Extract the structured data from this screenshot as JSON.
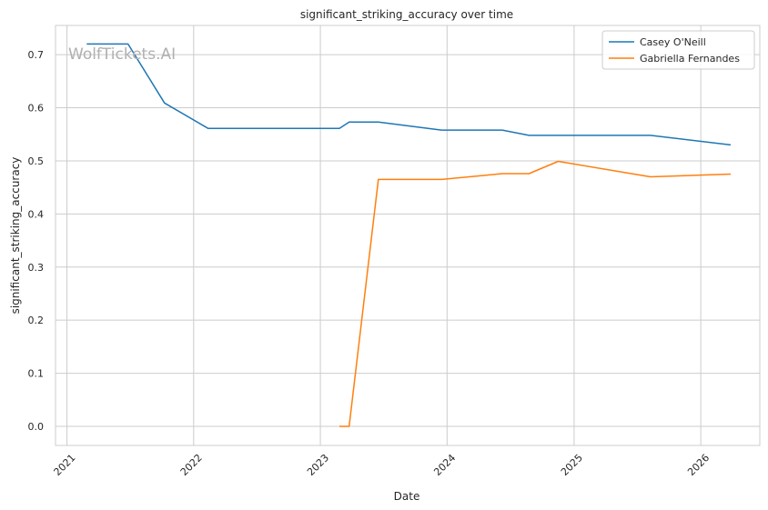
{
  "chart_data": {
    "type": "line",
    "title": "significant_striking_accuracy over time",
    "xlabel": "Date",
    "ylabel": "significant_striking_accuracy",
    "watermark": "WolfTickets.AI",
    "xlim": [
      "2020-11-29",
      "2026-06-20"
    ],
    "ylim": [
      -0.036,
      0.755
    ],
    "x_ticks": [
      "2021",
      "2022",
      "2023",
      "2024",
      "2025",
      "2026"
    ],
    "y_ticks": [
      "0.0",
      "0.1",
      "0.2",
      "0.3",
      "0.4",
      "0.5",
      "0.6",
      "0.7"
    ],
    "grid": true,
    "legend": "top-right",
    "series": [
      {
        "name": "Casey O'Neill",
        "color": "#1f77b4",
        "x": [
          "2021-02-27",
          "2021-06-26",
          "2021-10-09",
          "2022-02-12",
          "2023-02-25",
          "2023-03-25",
          "2023-06-17",
          "2023-12-16",
          "2024-06-08",
          "2024-08-24",
          "2025-08-09",
          "2026-03-28"
        ],
        "y": [
          0.72,
          0.72,
          0.609,
          0.561,
          0.561,
          0.573,
          0.573,
          0.558,
          0.558,
          0.548,
          0.548,
          0.53
        ]
      },
      {
        "name": "Gabriella Fernandes",
        "color": "#ff7f0e",
        "x": [
          "2023-02-25",
          "2023-03-25",
          "2023-06-17",
          "2023-12-16",
          "2024-06-08",
          "2024-08-24",
          "2024-11-16",
          "2025-08-09",
          "2026-03-28"
        ],
        "y": [
          0.0,
          0.0,
          0.465,
          0.465,
          0.476,
          0.476,
          0.499,
          0.47,
          0.475
        ]
      }
    ]
  }
}
